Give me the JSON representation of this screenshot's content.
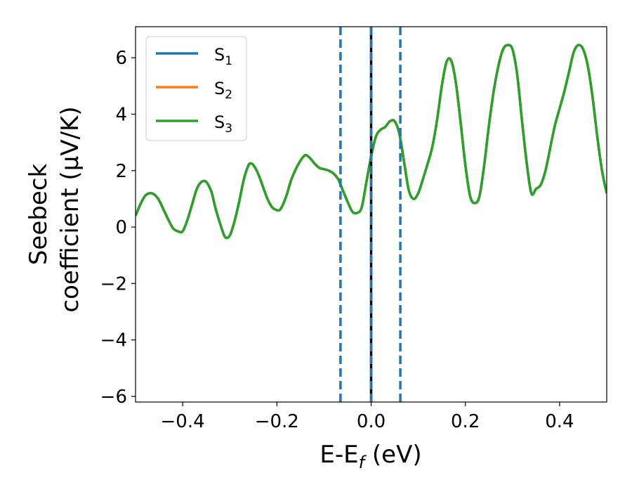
{
  "chart_data": {
    "type": "line",
    "xlabel_main": "E-E",
    "xlabel_sub": "f",
    "xlabel_unit": " (eV)",
    "ylabel_line1": "Seebeck",
    "ylabel_line2": "coefficient  (μV/K)",
    "xlim": [
      -0.5,
      0.5
    ],
    "ylim": [
      -6.2,
      7.1
    ],
    "xticks": [
      -0.4,
      -0.2,
      0.0,
      0.2,
      0.4
    ],
    "xtick_labels": [
      "−0.4",
      "−0.2",
      "0.0",
      "0.2",
      "0.4"
    ],
    "yticks": [
      -6,
      -4,
      -2,
      0,
      2,
      4,
      6
    ],
    "ytick_labels": [
      "−6",
      "−4",
      "−2",
      "0",
      "2",
      "4",
      "6"
    ],
    "grid": false,
    "legend_position": "top-left",
    "x": [
      -0.5,
      -0.49,
      -0.48,
      -0.47,
      -0.46,
      -0.45,
      -0.44,
      -0.43,
      -0.42,
      -0.41,
      -0.4,
      -0.39,
      -0.38,
      -0.37,
      -0.36,
      -0.35,
      -0.34,
      -0.335,
      -0.33,
      -0.32,
      -0.31,
      -0.3,
      -0.29,
      -0.28,
      -0.27,
      -0.26,
      -0.255,
      -0.25,
      -0.24,
      -0.23,
      -0.22,
      -0.21,
      -0.2,
      -0.195,
      -0.19,
      -0.18,
      -0.17,
      -0.16,
      -0.15,
      -0.14,
      -0.13,
      -0.12,
      -0.11,
      -0.1,
      -0.09,
      -0.08,
      -0.07,
      -0.06,
      -0.05,
      -0.04,
      -0.03,
      -0.02,
      -0.01,
      0.0,
      0.01,
      0.02,
      0.03,
      0.04,
      0.05,
      0.06,
      0.07,
      0.08,
      0.09,
      0.1,
      0.11,
      0.12,
      0.13,
      0.14,
      0.15,
      0.16,
      0.17,
      0.18,
      0.19,
      0.2,
      0.21,
      0.22,
      0.23,
      0.24,
      0.25,
      0.26,
      0.27,
      0.28,
      0.29,
      0.3,
      0.31,
      0.32,
      0.33,
      0.34,
      0.35,
      0.36,
      0.37,
      0.38,
      0.39,
      0.4,
      0.41,
      0.42,
      0.43,
      0.44,
      0.45,
      0.46,
      0.47,
      0.48,
      0.49,
      0.5
    ],
    "y": [
      0.4,
      0.8,
      1.1,
      1.2,
      1.15,
      0.95,
      0.6,
      0.25,
      -0.05,
      -0.15,
      -0.15,
      0.25,
      0.8,
      1.35,
      1.6,
      1.6,
      1.3,
      1.0,
      0.65,
      0.1,
      -0.35,
      -0.3,
      0.2,
      0.9,
      1.7,
      2.2,
      2.25,
      2.2,
      1.9,
      1.45,
      1.0,
      0.7,
      0.6,
      0.6,
      0.7,
      1.1,
      1.65,
      2.05,
      2.35,
      2.55,
      2.45,
      2.25,
      2.1,
      2.05,
      2.0,
      1.9,
      1.7,
      1.3,
      0.9,
      0.55,
      0.5,
      0.7,
      1.6,
      2.5,
      3.2,
      3.45,
      3.55,
      3.75,
      3.75,
      3.3,
      2.3,
      1.3,
      1.0,
      1.2,
      1.7,
      2.25,
      2.85,
      3.8,
      5.0,
      5.85,
      5.9,
      5.1,
      3.7,
      2.2,
      1.1,
      0.85,
      1.1,
      2.2,
      3.6,
      4.8,
      5.7,
      6.3,
      6.45,
      6.3,
      5.4,
      3.8,
      2.3,
      1.2,
      1.35,
      1.5,
      2.0,
      2.8,
      3.6,
      4.2,
      4.8,
      5.5,
      6.2,
      6.45,
      6.3,
      5.7,
      4.6,
      3.2,
      2.0,
      1.2
    ],
    "series": [
      {
        "name": "S",
        "sub": "1",
        "color": "#1f77b4"
      },
      {
        "name": "S",
        "sub": "2",
        "color": "#ff7f0e"
      },
      {
        "name": "S",
        "sub": "3",
        "color": "#2ca02c"
      }
    ],
    "vlines": [
      {
        "x": -0.065,
        "style": "dashed",
        "color": "#1f77b4"
      },
      {
        "x": 0.0,
        "style": "solid",
        "color": "#000000"
      },
      {
        "x": 0.0,
        "style": "dashed",
        "color": "#1f77b4"
      },
      {
        "x": 0.062,
        "style": "dashed",
        "color": "#1f77b4"
      }
    ]
  }
}
